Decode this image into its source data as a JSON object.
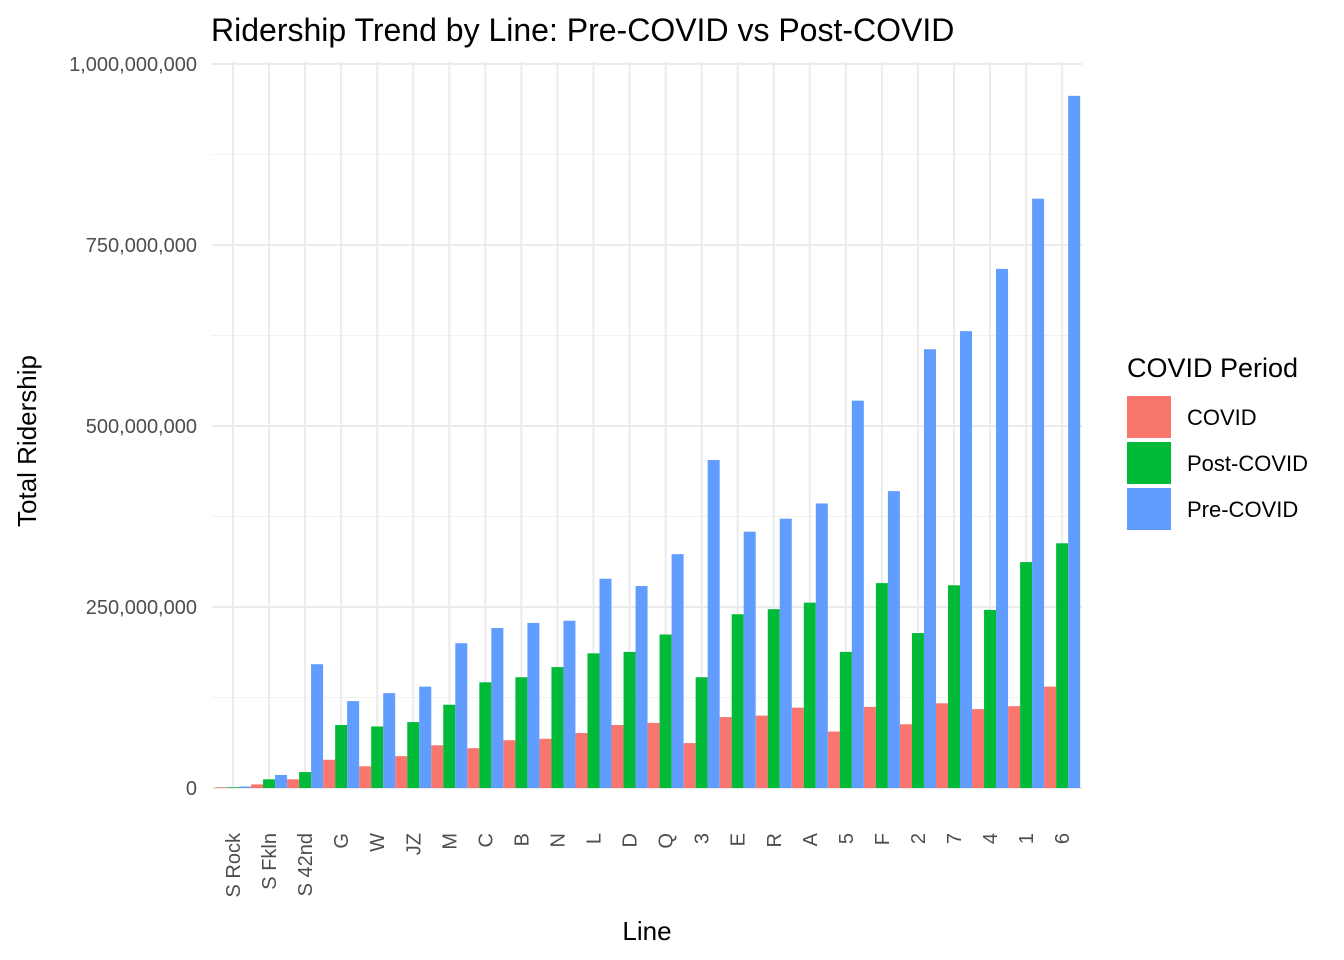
{
  "chart_data": {
    "type": "bar",
    "title": "Ridership Trend by Line: Pre-COVID vs Post-COVID",
    "xlabel": "Line",
    "ylabel": "Total Ridership",
    "ylim": [
      0,
      1000000000
    ],
    "y_ticks": [
      0,
      250000000,
      500000000,
      750000000,
      1000000000
    ],
    "y_tick_labels": [
      "0",
      "250,000,000",
      "500,000,000",
      "750,000,000",
      "1,000,000,000"
    ],
    "grid": true,
    "legend_position": "right",
    "legend_title": "COVID Period",
    "categories": [
      "S Rock",
      "S Fkln",
      "S 42nd",
      "G",
      "W",
      "JZ",
      "M",
      "C",
      "B",
      "N",
      "L",
      "D",
      "Q",
      "3",
      "E",
      "R",
      "A",
      "5",
      "F",
      "2",
      "7",
      "4",
      "1",
      "6"
    ],
    "series": [
      {
        "name": "COVID",
        "color": "#F8766D",
        "values": [
          1000000,
          5000000,
          12000000,
          39000000,
          30000000,
          44000000,
          59000000,
          55000000,
          66000000,
          68000000,
          76000000,
          87000000,
          90000000,
          62000000,
          98000000,
          100000000,
          111000000,
          78000000,
          112000000,
          88000000,
          117000000,
          109000000,
          113000000,
          140000000
        ]
      },
      {
        "name": "Post-COVID",
        "color": "#00BA38",
        "values": [
          1000000,
          12000000,
          22000000,
          87000000,
          85000000,
          91000000,
          115000000,
          146000000,
          153000000,
          167000000,
          186000000,
          188000000,
          212000000,
          153000000,
          240000000,
          247000000,
          256000000,
          188000000,
          283000000,
          214000000,
          280000000,
          246000000,
          312000000,
          338000000
        ]
      },
      {
        "name": "Pre-COVID",
        "color": "#619CFF",
        "values": [
          2000000,
          18000000,
          171000000,
          120000000,
          131000000,
          140000000,
          200000000,
          221000000,
          228000000,
          231000000,
          289000000,
          279000000,
          323000000,
          453000000,
          354000000,
          372000000,
          393000000,
          535000000,
          410000000,
          606000000,
          631000000,
          717000000,
          814000000,
          956000000
        ]
      }
    ]
  }
}
